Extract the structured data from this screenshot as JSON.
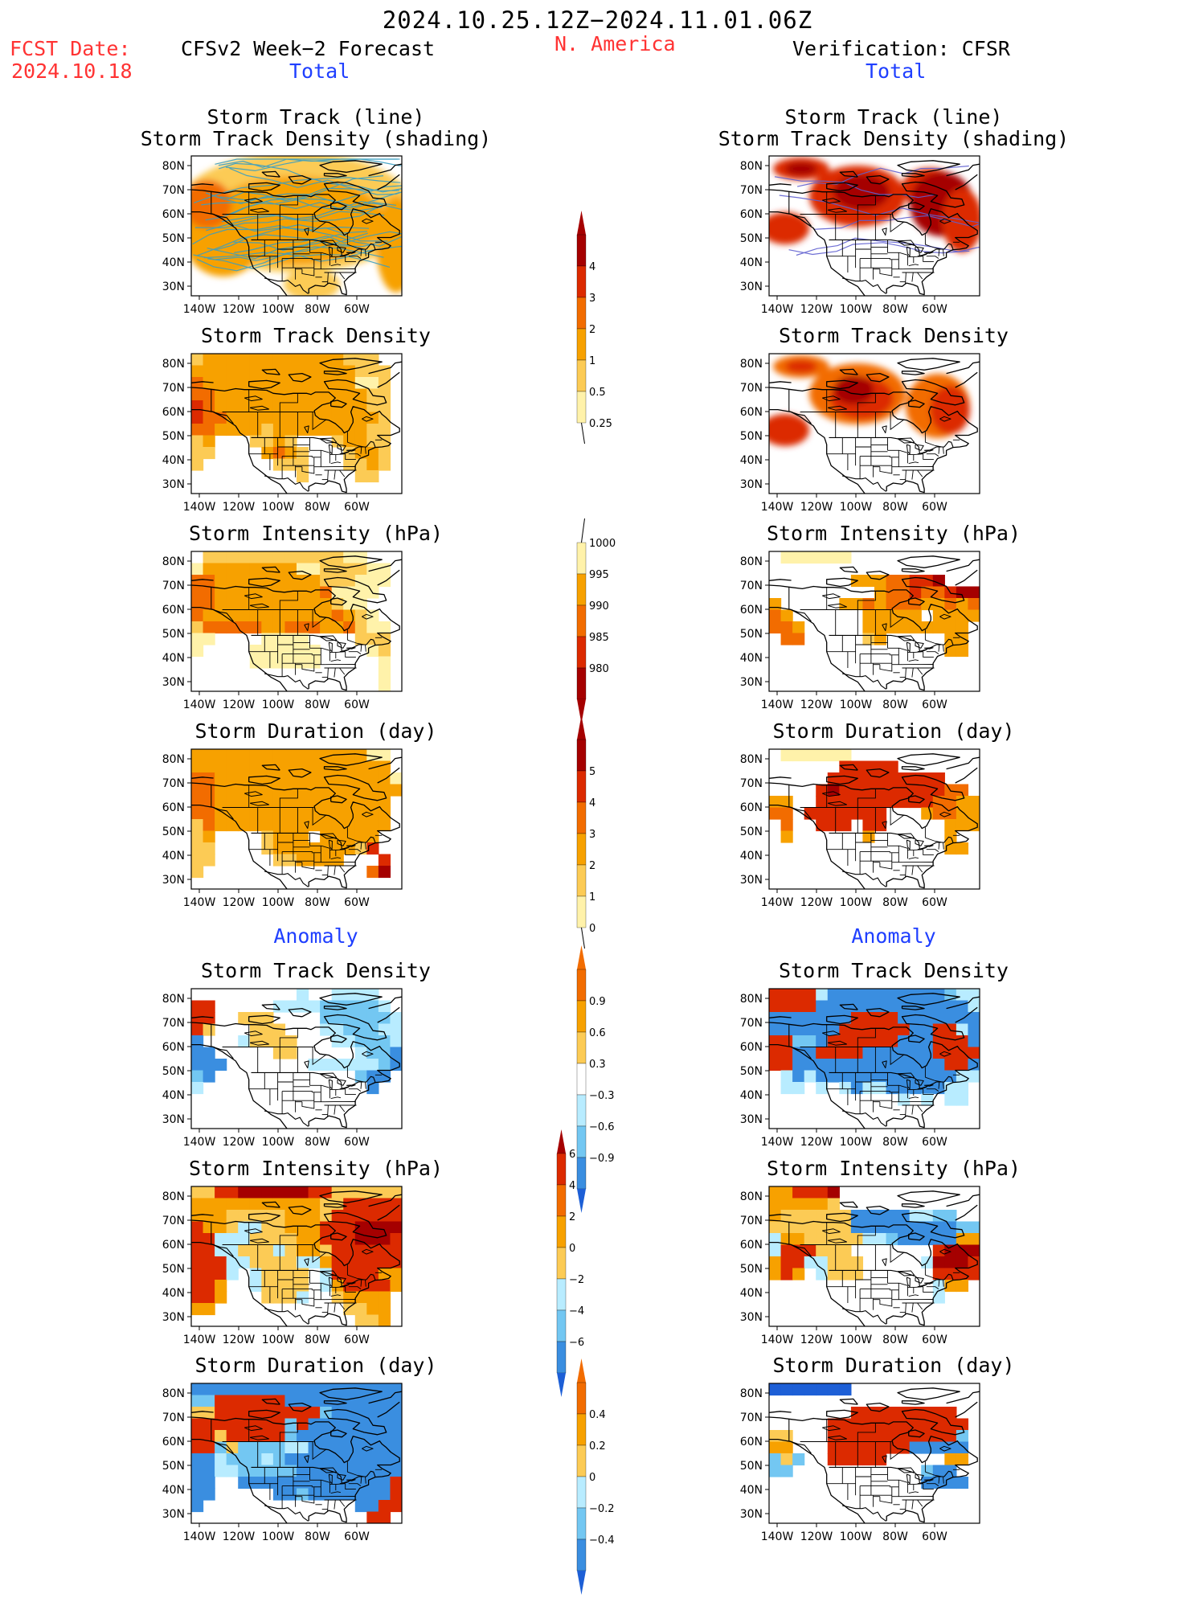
{
  "header": {
    "period": "2024.10.25.12Z−2024.11.01.06Z",
    "fcst_label": "FCST Date:",
    "fcst_date": "2024.10.18",
    "left_title": "CFSv2 Week−2 Forecast",
    "region": "N. America",
    "right_title": "Verification: CFSR"
  },
  "sections": {
    "total": "Total",
    "anomaly": "Anomaly"
  },
  "panel_titles": {
    "track_line": "Storm Track (line)",
    "track_shading": "Storm Track Density (shading)",
    "track_density": "Storm Track Density",
    "intensity": "Storm Intensity (hPa)",
    "duration": "Storm Duration (day)"
  },
  "axes": {
    "lat_labels": [
      "80N",
      "70N",
      "60N",
      "50N",
      "40N",
      "30N"
    ],
    "lon_labels": [
      "140W",
      "120W",
      "100W",
      "80W",
      "60W"
    ]
  },
  "colorbars": {
    "total_density": {
      "labels": [
        "4",
        "3",
        "2",
        "1",
        "0.5",
        "0.25"
      ],
      "colors": [
        "#a50000",
        "#dc2a00",
        "#f26c00",
        "#f7a100",
        "#fccb55",
        "#fff2aa"
      ]
    },
    "total_intensity": {
      "labels": [
        "1000",
        "995",
        "990",
        "985",
        "980"
      ],
      "colors": [
        "#fff2aa",
        "#f7a100",
        "#f26c00",
        "#dc2a00",
        "#a50000"
      ]
    },
    "total_duration": {
      "labels": [
        "5",
        "4",
        "3",
        "2",
        "1",
        "0"
      ],
      "colors": [
        "#a50000",
        "#dc2a00",
        "#f26c00",
        "#f7a100",
        "#fccb55",
        "#fff2aa"
      ]
    },
    "anom_density": {
      "labels": [
        "0.9",
        "0.6",
        "0.3",
        "−0.3",
        "−0.6",
        "−0.9"
      ]
    },
    "anom_intensity": {
      "labels": [
        "6",
        "4",
        "2",
        "0",
        "−2",
        "−4",
        "−6"
      ]
    },
    "anom_duration": {
      "labels": [
        "0.4",
        "0.2",
        "0",
        "−0.2",
        "−0.4"
      ]
    }
  },
  "colors": {
    "title_red": "#ff3333",
    "section_blue": "#1f3fff",
    "track_line": "#3a9ec2",
    "verify_track_line": "#6060d0"
  }
}
